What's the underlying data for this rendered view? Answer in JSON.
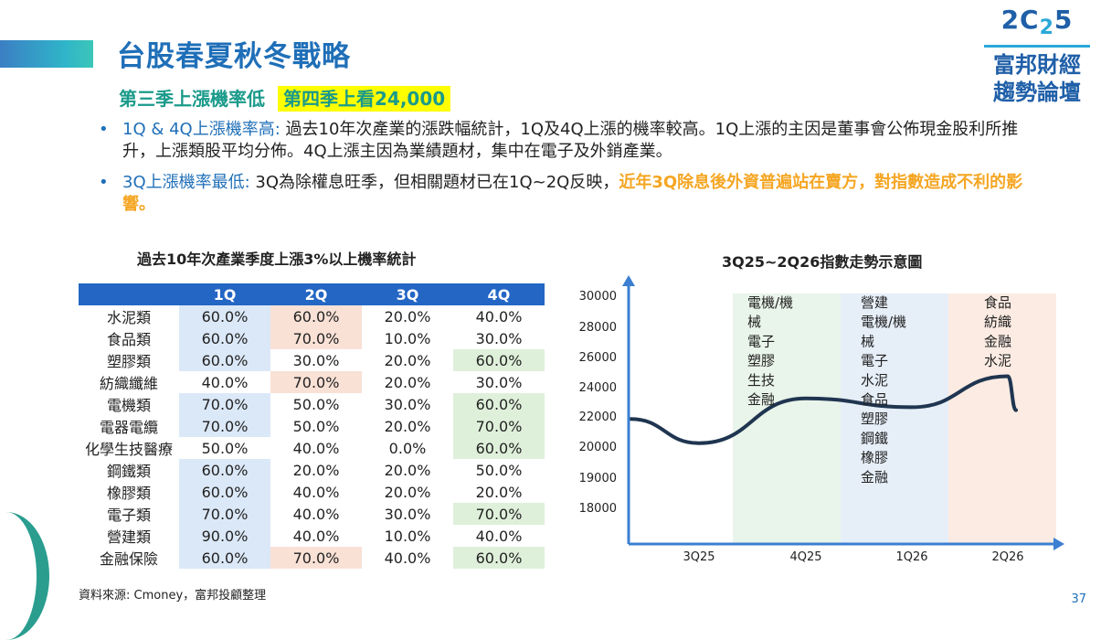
{
  "title": "台股春夏秋冬戰略",
  "subtitle": {
    "left": "第三季上漲機率低",
    "highlight": "第四季上看24,000"
  },
  "logo": {
    "year_a": "2C",
    "year_b": "2",
    "year_c": "5",
    "line1": "富邦財經",
    "line2": "趨勢論壇"
  },
  "bullets": [
    {
      "head": "1Q & 4Q上漲機率高:",
      "body": " 過去10年次產業的漲跌幅統計，1Q及4Q上漲的機率較高。1Q上漲的主因是董事會公佈現金股利所推升，上漲類股平均分佈。4Q上漲主因為業績題材，集中在電子及外銷產業。",
      "tail": ""
    },
    {
      "head": "3Q上漲機率最低:",
      "body": " 3Q為除權息旺季，但相關題材已在1Q~2Q反映，",
      "tail": "近年3Q除息後外資普遍站在賣方，對指數造成不利的影響。"
    }
  ],
  "table": {
    "title": "過去10年次產業季度上漲3%以上機率統計",
    "headers": [
      "",
      "1Q",
      "2Q",
      "3Q",
      "4Q"
    ],
    "colors": {
      "blue": "#dbe8f7",
      "pink": "#f9e1d6",
      "green": "#dff0da",
      "header": "#2366c4"
    },
    "rows": [
      {
        "name": "水泥類",
        "values": [
          "60.0%",
          "60.0%",
          "20.0%",
          "40.0%"
        ],
        "hl": [
          "blue",
          "pink",
          "",
          ""
        ]
      },
      {
        "name": "食品類",
        "values": [
          "60.0%",
          "70.0%",
          "10.0%",
          "30.0%"
        ],
        "hl": [
          "blue",
          "pink",
          "",
          ""
        ]
      },
      {
        "name": "塑膠類",
        "values": [
          "60.0%",
          "30.0%",
          "20.0%",
          "60.0%"
        ],
        "hl": [
          "blue",
          "",
          "",
          "green"
        ]
      },
      {
        "name": "紡織纖維",
        "values": [
          "40.0%",
          "70.0%",
          "20.0%",
          "30.0%"
        ],
        "hl": [
          "",
          "pink",
          "",
          ""
        ]
      },
      {
        "name": "電機類",
        "values": [
          "70.0%",
          "50.0%",
          "30.0%",
          "60.0%"
        ],
        "hl": [
          "blue",
          "",
          "",
          "green"
        ]
      },
      {
        "name": "電器電纜",
        "values": [
          "70.0%",
          "50.0%",
          "20.0%",
          "70.0%"
        ],
        "hl": [
          "blue",
          "",
          "",
          "green"
        ]
      },
      {
        "name": "化學生技醫療",
        "values": [
          "50.0%",
          "40.0%",
          "0.0%",
          "60.0%"
        ],
        "hl": [
          "",
          "",
          "",
          "green"
        ]
      },
      {
        "name": "鋼鐵類",
        "values": [
          "60.0%",
          "20.0%",
          "20.0%",
          "50.0%"
        ],
        "hl": [
          "blue",
          "",
          "",
          ""
        ]
      },
      {
        "name": "橡膠類",
        "values": [
          "60.0%",
          "40.0%",
          "20.0%",
          "20.0%"
        ],
        "hl": [
          "blue",
          "",
          "",
          ""
        ]
      },
      {
        "name": "電子類",
        "values": [
          "70.0%",
          "40.0%",
          "30.0%",
          "70.0%"
        ],
        "hl": [
          "blue",
          "",
          "",
          "green"
        ]
      },
      {
        "name": "營建類",
        "values": [
          "90.0%",
          "40.0%",
          "10.0%",
          "40.0%"
        ],
        "hl": [
          "blue",
          "",
          "",
          ""
        ]
      },
      {
        "name": "金融保險",
        "values": [
          "60.0%",
          "70.0%",
          "40.0%",
          "60.0%"
        ],
        "hl": [
          "blue",
          "pink",
          "",
          "green"
        ]
      }
    ]
  },
  "source": "資料來源: Cmoney，富邦投顧整理",
  "page_number": "37",
  "chart_data": {
    "type": "line",
    "title": "3Q25~2Q26指數走勢示意圖",
    "y_ticks": [
      "30000",
      "28000",
      "26000",
      "24000",
      "22000",
      "20000",
      "19000",
      "18000"
    ],
    "x": [
      "3Q25",
      "4Q25",
      "1Q26",
      "2Q26"
    ],
    "series": [
      {
        "name": "index",
        "values": [
          20200,
          23200,
          22600,
          24700
        ]
      }
    ],
    "bands": [
      {
        "quarter": "4Q25",
        "color": "#e9f4ea",
        "sectors": [
          "電機/機",
          "械",
          "電子",
          "塑膠",
          "生技",
          "金融"
        ]
      },
      {
        "quarter": "1Q26",
        "color": "#e6eef8",
        "sectors": [
          "營建",
          "電機/機",
          "械",
          "電子",
          "水泥",
          "食品",
          "塑膠",
          "鋼鐵",
          "橡膠",
          "金融"
        ]
      },
      {
        "quarter": "2Q26",
        "color": "#fbebe2",
        "sectors": [
          "食品",
          "紡織",
          "金融",
          "水泥"
        ]
      }
    ],
    "line_color": "#1f3550",
    "axis_color": "#3b7fd1"
  }
}
